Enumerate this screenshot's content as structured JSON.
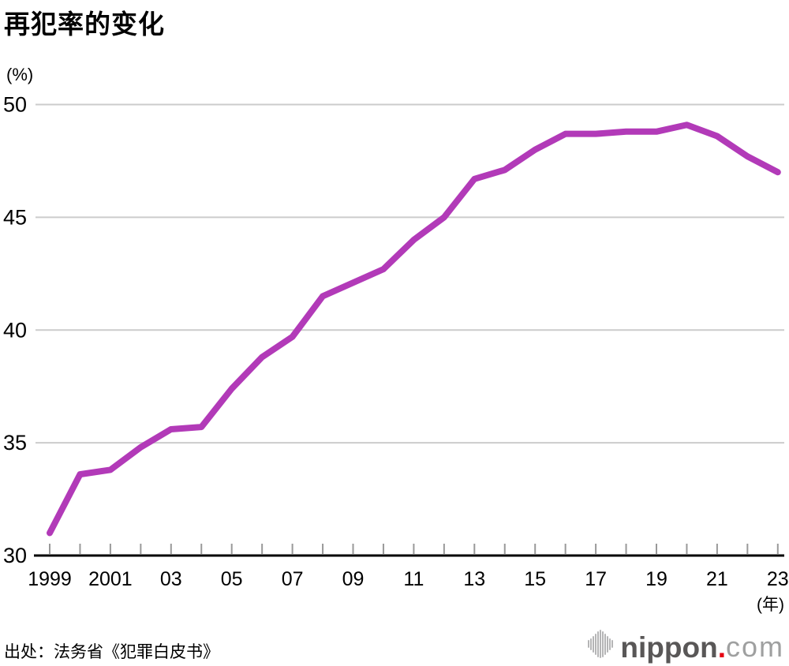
{
  "title": "再犯率的变化",
  "footer": {
    "source": "出处：法务省《犯罪白皮书》",
    "logo": {
      "brand": "nippon",
      "dot": ".",
      "tld": "com",
      "brand_color": "#595757",
      "dot_color": "#e60012",
      "tld_color": "#9fa0a0",
      "icon_color": "#b5b5b6",
      "icon_name": "audio-wave-icon"
    }
  },
  "chart_data": {
    "type": "line",
    "title": "再犯率的变化",
    "y_unit_label": "(%)",
    "x_unit_label": "(年)",
    "x": [
      1999,
      2000,
      2001,
      2002,
      2003,
      2004,
      2005,
      2006,
      2007,
      2008,
      2009,
      2010,
      2011,
      2012,
      2013,
      2014,
      2015,
      2016,
      2017,
      2018,
      2019,
      2020,
      2021,
      2022,
      2023
    ],
    "series": [
      {
        "name": "再犯率",
        "color": "#b23ab8",
        "values": [
          31.0,
          33.6,
          33.8,
          34.8,
          35.6,
          35.7,
          37.4,
          38.8,
          39.7,
          41.5,
          42.1,
          42.7,
          44.0,
          45.0,
          46.7,
          47.1,
          48.0,
          48.7,
          48.7,
          48.8,
          48.8,
          49.1,
          48.6,
          47.7,
          47.0
        ]
      }
    ],
    "ylim": [
      30,
      50
    ],
    "yticks": [
      30,
      35,
      40,
      45,
      50
    ],
    "xtick_labels": [
      {
        "year": 1999,
        "label": "1999"
      },
      {
        "year": 2001,
        "label": "2001"
      },
      {
        "year": 2003,
        "label": "03"
      },
      {
        "year": 2005,
        "label": "05"
      },
      {
        "year": 2007,
        "label": "07"
      },
      {
        "year": 2009,
        "label": "09"
      },
      {
        "year": 2011,
        "label": "11"
      },
      {
        "year": 2013,
        "label": "13"
      },
      {
        "year": 2015,
        "label": "15"
      },
      {
        "year": 2017,
        "label": "17"
      },
      {
        "year": 2019,
        "label": "19"
      },
      {
        "year": 2021,
        "label": "21"
      },
      {
        "year": 2023,
        "label": "23"
      }
    ],
    "grid": "horizontal-only",
    "legend": "none",
    "colors": {
      "grid": "#cccccc",
      "axis": "#000000",
      "tick": "#999999",
      "text": "#000000",
      "background": "#ffffff"
    }
  }
}
